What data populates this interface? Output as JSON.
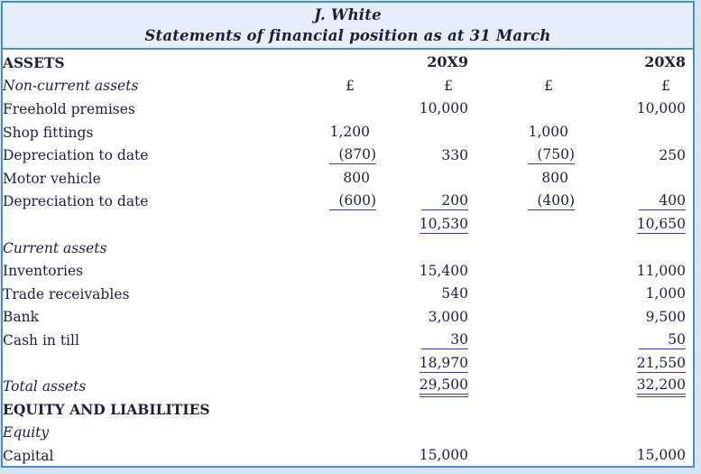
{
  "colors": {
    "frame_border": "#4a90c8",
    "header_background": "#e6eef9",
    "page_background": "#d6e5f3",
    "text": "#1d1f38",
    "rule_lines": "#383c97"
  },
  "header": {
    "title": "J. White",
    "subtitle": "Statements of financial position as at 31 March"
  },
  "table": {
    "currency_symbol": "£",
    "year_columns": [
      "20X9",
      "20X8"
    ],
    "rows": [
      {
        "label": "ASSETS",
        "style": "bold",
        "cells": [
          null,
          {
            "text": "20X9",
            "bold": true
          },
          null,
          {
            "text": "20X8",
            "bold": true
          }
        ]
      },
      {
        "label": "Non-current assets",
        "style": "italic",
        "cells": [
          {
            "text": "£",
            "pound": true
          },
          {
            "text": "£",
            "pound": true
          },
          {
            "text": "£",
            "pound": true
          },
          {
            "text": "£",
            "pound": true
          }
        ]
      },
      {
        "label": "Freehold premises",
        "style": "normal",
        "cells": [
          null,
          {
            "text": "10,000"
          },
          null,
          {
            "text": "10,000"
          }
        ]
      },
      {
        "label": "Shop fittings",
        "style": "normal",
        "cells": [
          {
            "text": "1,200"
          },
          null,
          {
            "text": "1,000"
          },
          null
        ]
      },
      {
        "label": "Depreciation to date",
        "style": "normal",
        "cells": [
          {
            "text": "(870)",
            "underline": "single"
          },
          {
            "text": "330"
          },
          {
            "text": "(750)",
            "underline": "single"
          },
          {
            "text": "250"
          }
        ]
      },
      {
        "label": "Motor vehicle",
        "style": "normal",
        "cells": [
          {
            "text": "800"
          },
          null,
          {
            "text": "800"
          },
          null
        ]
      },
      {
        "label": "Depreciation to date",
        "style": "normal",
        "cells": [
          {
            "text": "(600)",
            "underline": "single"
          },
          {
            "text": "200",
            "underline": "single"
          },
          {
            "text": "(400)",
            "underline": "single"
          },
          {
            "text": "400",
            "underline": "single"
          }
        ]
      },
      {
        "label": "",
        "style": "normal",
        "cells": [
          null,
          {
            "text": "10,530",
            "underline": "single"
          },
          null,
          {
            "text": "10,650",
            "underline": "single"
          }
        ]
      },
      {
        "label": "Current assets",
        "style": "italic",
        "cells": [
          null,
          null,
          null,
          null
        ]
      },
      {
        "label": "Inventories",
        "style": "normal",
        "cells": [
          null,
          {
            "text": "15,400"
          },
          null,
          {
            "text": "11,000"
          }
        ]
      },
      {
        "label": "Trade receivables",
        "style": "normal",
        "cells": [
          null,
          {
            "text": "540"
          },
          null,
          {
            "text": "1,000"
          }
        ]
      },
      {
        "label": "Bank",
        "style": "normal",
        "cells": [
          null,
          {
            "text": "3,000"
          },
          null,
          {
            "text": "9,500"
          }
        ]
      },
      {
        "label": "Cash in till",
        "style": "normal",
        "cells": [
          null,
          {
            "text": "30",
            "underline": "single"
          },
          null,
          {
            "text": "50",
            "underline": "single"
          }
        ]
      },
      {
        "label": "",
        "style": "normal",
        "cells": [
          null,
          {
            "text": "18,970",
            "underline": "single"
          },
          null,
          {
            "text": "21,550",
            "underline": "single"
          }
        ]
      },
      {
        "label": "Total assets",
        "style": "italic",
        "cells": [
          null,
          {
            "text": "29,500",
            "underline": "double"
          },
          null,
          {
            "text": "32,200",
            "underline": "double"
          }
        ]
      },
      {
        "label": "EQUITY AND LIABILITIES",
        "style": "bold",
        "cells": [
          null,
          null,
          null,
          null
        ]
      },
      {
        "label": "Equity",
        "style": "italic",
        "cells": [
          null,
          null,
          null,
          null
        ]
      },
      {
        "label": "Capital",
        "style": "normal",
        "cells": [
          null,
          {
            "text": "15,000"
          },
          null,
          {
            "text": "15,000"
          }
        ]
      }
    ]
  }
}
